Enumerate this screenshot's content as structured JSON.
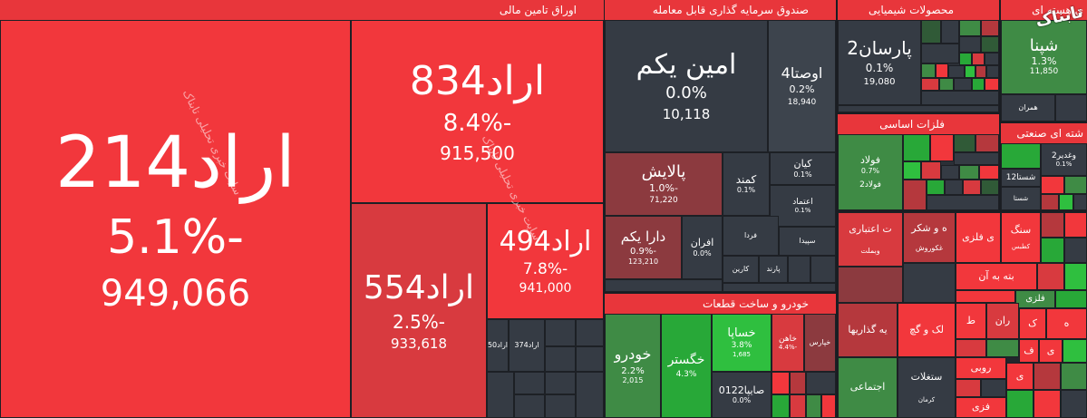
{
  "sections": {
    "bonds": {
      "title": "اوراق تامین مالی"
    },
    "fund": {
      "title": "صندوق سرمایه گذاری قابل معامله"
    },
    "chem": {
      "title": "محصولات شیمیایی"
    },
    "nuclear": {
      "title": "ی هسته ای"
    },
    "metals": {
      "title": "فلزات اساسی"
    },
    "auto": {
      "title": "خودرو و ساخت قطعات"
    },
    "nuclear2": {
      "title": "شته ای صنعتی"
    }
  },
  "tiles": {
    "arad214": {
      "name": "اراد214",
      "change": "-5.1%",
      "value": "949,066"
    },
    "arad834": {
      "name": "اراد834",
      "change": "-8.4%",
      "value": "915,500"
    },
    "arad554": {
      "name": "اراد554",
      "change": "-2.5%",
      "value": "933,618"
    },
    "arad494": {
      "name": "اراد494",
      "change": "-7.8%",
      "value": "941,000"
    },
    "arad50": {
      "name": "اراد50"
    },
    "arad374": {
      "name": "اراد374"
    },
    "aminyekom": {
      "name": "امین یکم",
      "change": "0.0%",
      "value": "10,118"
    },
    "ousta4": {
      "name": "اوصتا4",
      "change": "0.2%",
      "value": "18,940"
    },
    "palayesh": {
      "name": "پالایش",
      "change": "-1.0%",
      "value": "71,220"
    },
    "kamand": {
      "name": "کمند",
      "change": "0.1%"
    },
    "kian": {
      "name": "کیان",
      "change": "0.1%"
    },
    "etemad": {
      "name": "اعتماد",
      "change": "0.1%"
    },
    "darayekom": {
      "name": "دارا یکم",
      "change": "-0.9%",
      "value": "123,210"
    },
    "afran": {
      "name": "افران",
      "change": "0.0%"
    },
    "farda": {
      "name": "فردا"
    },
    "sepida": {
      "name": "سپیدا"
    },
    "karin": {
      "name": "کارین"
    },
    "parand": {
      "name": "پارند"
    },
    "parsan2": {
      "name": "پارسان2",
      "change": "0.1%",
      "value": "19,080"
    },
    "shapna": {
      "name": "شپنا",
      "change": "1.3%",
      "value": "11,850"
    },
    "hamran": {
      "name": "همران"
    },
    "foulad": {
      "name": "فولاد",
      "change": "0.7%"
    },
    "foulad2": {
      "name": "فولاد2"
    },
    "fameli": {
      "name": "فملی"
    },
    "vaghadir2": {
      "name": "وغدیر2",
      "change": "0.1%"
    },
    "shasta12": {
      "name": "شستا12"
    },
    "shasta": {
      "name": "شستا"
    },
    "khodro": {
      "name": "خودرو",
      "change": "2.2%",
      "value": "2,015"
    },
    "khegostar": {
      "name": "خگستر",
      "change": "4.3%"
    },
    "khasapa": {
      "name": "خساپا",
      "change": "3.8%",
      "value": "1,685"
    },
    "khaahan": {
      "name": "خاهن",
      "change": "-4.4%"
    },
    "khepars": {
      "name": "خپارس"
    },
    "saipa0122": {
      "name": "صایپا0122",
      "change": "0.0%"
    },
    "credit": {
      "name": "ت اعتباری"
    },
    "vamellat": {
      "name": "وبملت"
    },
    "mashkor": {
      "name": "ه و شکر"
    },
    "ghakorosh": {
      "name": "غکوروش"
    },
    "ifelzi": {
      "name": "ی فلزی"
    },
    "sang": {
      "name": "سنگ"
    },
    "kahkas": {
      "name": "کطبس"
    },
    "beteh": {
      "name": "بته به آن"
    },
    "felzi2": {
      "name": "فلزی"
    },
    "gozarha": {
      "name": "یه گذاریها"
    },
    "lakogach": {
      "name": "لک و گچ"
    },
    "ejtemaei": {
      "name": "اجتماعی"
    },
    "mostaghelat": {
      "name": "ستغلات"
    },
    "kerman": {
      "name": "کرمان"
    },
    "misc1": {
      "name": "ران"
    },
    "misc2": {
      "name": "ک"
    },
    "misc3": {
      "name": "ط"
    },
    "misc4": {
      "name": "ه"
    },
    "misc5": {
      "name": "ف"
    },
    "misc6": {
      "name": "ی"
    },
    "misc7": {
      "name": "روبی"
    },
    "misc8": {
      "name": "فزی"
    },
    "misc9": {
      "name": "ی"
    }
  },
  "watermark": {
    "text": "سایت خبری تحلیلی تابناک"
  },
  "logo": {
    "text": "تابناک"
  },
  "colors": {
    "red": "#f2373c",
    "green": "#2fbf3f",
    "neutral": "#353b44",
    "header": "#e8363b"
  }
}
